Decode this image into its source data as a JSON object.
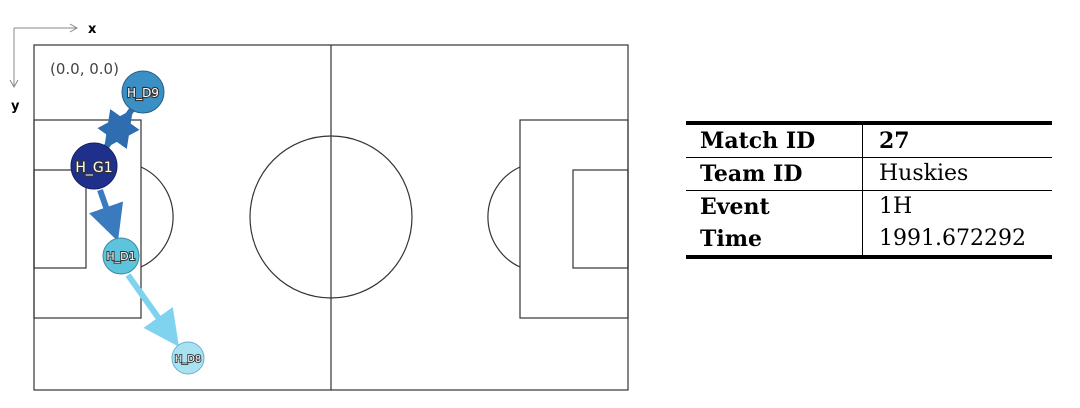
{
  "axes": {
    "x_label": "x",
    "y_label": "y"
  },
  "origin_label": "(0.0,  0.0)",
  "players": [
    {
      "id": "H_D9",
      "shade": "#3a8fc4"
    },
    {
      "id": "H_G1",
      "shade": "#1f2f8c"
    },
    {
      "id": "H_D1",
      "shade": "#5ec4dc"
    },
    {
      "id": "H_D8",
      "shade": "#a8e2f2"
    }
  ],
  "passes": [
    {
      "from": "H_G1",
      "to": "H_D9",
      "color": "#2e6db0"
    },
    {
      "from": "H_D9",
      "to": "H_G1",
      "color": "#2e6db0"
    },
    {
      "from": "H_G1",
      "to": "H_D1",
      "color": "#3a7bc0"
    },
    {
      "from": "H_D1",
      "to": "H_D8",
      "color": "#7fd3ee"
    }
  ],
  "info": {
    "match_id_label": "Match ID",
    "match_id_value": "27",
    "team_id_label": "Team ID",
    "team_id_value": "Huskies",
    "event_label": "Event",
    "event_value": "1H",
    "time_label": "Time",
    "time_value": "1991.672292"
  }
}
